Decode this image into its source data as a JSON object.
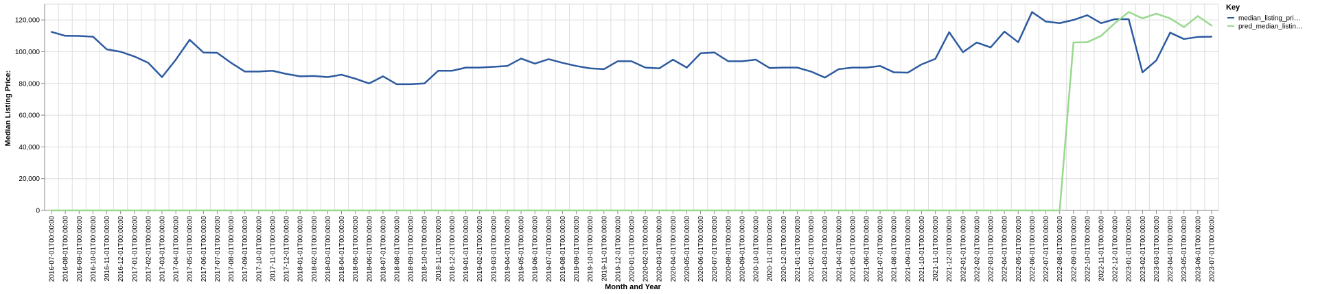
{
  "chart_data": {
    "type": "line",
    "xlabel": "Month and Year",
    "ylabel": "Median Listing Price:",
    "ylim": [
      0,
      130000
    ],
    "y_ticks": [
      0,
      20000,
      40000,
      60000,
      80000,
      100000,
      120000
    ],
    "y_tick_labels": [
      "0",
      "20,000",
      "40,000",
      "60,000",
      "80,000",
      "100,000",
      "120,000"
    ],
    "grid": true,
    "legend_position": "right",
    "legend_title": "Key",
    "x": [
      "2016-07-01T00:00:00",
      "2016-08-01T00:00:00",
      "2016-09-01T00:00:00",
      "2016-10-01T00:00:00",
      "2016-11-01T00:00:00",
      "2016-12-01T00:00:00",
      "2017-01-01T00:00:00",
      "2017-02-01T00:00:00",
      "2017-03-01T00:00:00",
      "2017-04-01T00:00:00",
      "2017-05-01T00:00:00",
      "2017-06-01T00:00:00",
      "2017-07-01T00:00:00",
      "2017-08-01T00:00:00",
      "2017-09-01T00:00:00",
      "2017-10-01T00:00:00",
      "2017-11-01T00:00:00",
      "2017-12-01T00:00:00",
      "2018-01-01T00:00:00",
      "2018-02-01T00:00:00",
      "2018-03-01T00:00:00",
      "2018-04-01T00:00:00",
      "2018-05-01T00:00:00",
      "2018-06-01T00:00:00",
      "2018-07-01T00:00:00",
      "2018-08-01T00:00:00",
      "2018-09-01T00:00:00",
      "2018-10-01T00:00:00",
      "2018-11-01T00:00:00",
      "2018-12-01T00:00:00",
      "2019-01-01T00:00:00",
      "2019-02-01T00:00:00",
      "2019-03-01T00:00:00",
      "2019-04-01T00:00:00",
      "2019-05-01T00:00:00",
      "2019-06-01T00:00:00",
      "2019-07-01T00:00:00",
      "2019-08-01T00:00:00",
      "2019-09-01T00:00:00",
      "2019-10-01T00:00:00",
      "2019-11-01T00:00:00",
      "2019-12-01T00:00:00",
      "2020-01-01T00:00:00",
      "2020-02-01T00:00:00",
      "2020-03-01T00:00:00",
      "2020-04-01T00:00:00",
      "2020-05-01T00:00:00",
      "2020-06-01T00:00:00",
      "2020-07-01T00:00:00",
      "2020-08-01T00:00:00",
      "2020-09-01T00:00:00",
      "2020-10-01T00:00:00",
      "2020-11-01T00:00:00",
      "2020-12-01T00:00:00",
      "2021-01-01T00:00:00",
      "2021-02-01T00:00:00",
      "2021-03-01T00:00:00",
      "2021-04-01T00:00:00",
      "2021-05-01T00:00:00",
      "2021-06-01T00:00:00",
      "2021-07-01T00:00:00",
      "2021-08-01T00:00:00",
      "2021-09-01T00:00:00",
      "2021-10-01T00:00:00",
      "2021-11-01T00:00:00",
      "2021-12-01T00:00:00",
      "2022-01-01T00:00:00",
      "2022-02-01T00:00:00",
      "2022-03-01T00:00:00",
      "2022-04-01T00:00:00",
      "2022-05-01T00:00:00",
      "2022-06-01T00:00:00",
      "2022-07-01T00:00:00",
      "2022-08-01T00:00:00",
      "2022-09-01T00:00:00",
      "2022-10-01T00:00:00",
      "2022-11-01T00:00:00",
      "2022-12-01T00:00:00",
      "2023-01-01T00:00:00",
      "2023-02-01T00:00:00",
      "2023-03-01T00:00:00",
      "2023-04-01T00:00:00",
      "2023-05-01T00:00:00",
      "2023-06-01T00:00:00",
      "2023-07-01T00:00:00"
    ],
    "series": [
      {
        "name": "median_listing_pri…",
        "color": "#2c5aa0",
        "values": [
          112500,
          110000,
          109900,
          109500,
          101500,
          100000,
          97000,
          93000,
          84000,
          95000,
          107500,
          99500,
          99300,
          93000,
          87500,
          87500,
          88000,
          86000,
          84500,
          84700,
          84000,
          85500,
          83000,
          80000,
          84500,
          79500,
          79500,
          80000,
          88000,
          88000,
          90000,
          90000,
          90500,
          91000,
          95700,
          92500,
          95300,
          93000,
          91000,
          89500,
          89000,
          94000,
          94000,
          90000,
          89500,
          95000,
          90000,
          99000,
          99500,
          94000,
          94000,
          95000,
          89700,
          90000,
          90000,
          87500,
          83700,
          89000,
          90000,
          90000,
          91000,
          87000,
          86800,
          92000,
          95500,
          112300,
          99700,
          105800,
          102700,
          112700,
          106000,
          125000,
          119000,
          118000,
          120000,
          123000,
          118000,
          120500,
          120500,
          87000,
          94500,
          112000,
          108000,
          109300,
          109500
        ]
      },
      {
        "name": "pred_median_listin…",
        "color": "#98d98e",
        "values": [
          0,
          0,
          0,
          0,
          0,
          0,
          0,
          0,
          0,
          0,
          0,
          0,
          0,
          0,
          0,
          0,
          0,
          0,
          0,
          0,
          0,
          0,
          0,
          0,
          0,
          0,
          0,
          0,
          0,
          0,
          0,
          0,
          0,
          0,
          0,
          0,
          0,
          0,
          0,
          0,
          0,
          0,
          0,
          0,
          0,
          0,
          0,
          0,
          0,
          0,
          0,
          0,
          0,
          0,
          0,
          0,
          0,
          0,
          0,
          0,
          0,
          0,
          0,
          0,
          0,
          0,
          0,
          0,
          0,
          0,
          0,
          0,
          0,
          0,
          105800,
          106000,
          110000,
          118000,
          125000,
          121000,
          124000,
          121000,
          115500,
          122500,
          116500
        ]
      }
    ]
  }
}
